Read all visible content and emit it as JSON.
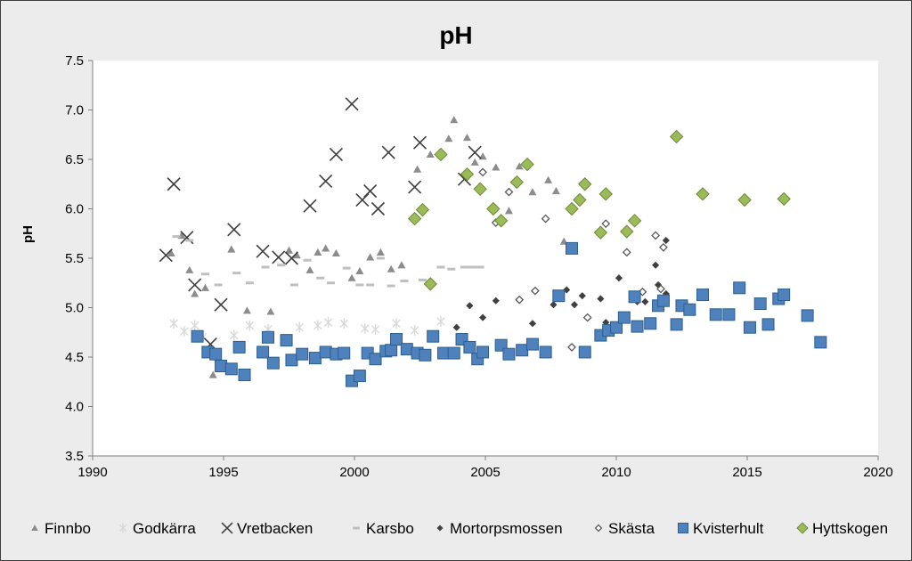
{
  "chart_data": {
    "type": "scatter",
    "title": "pH",
    "xlabel": "",
    "ylabel": "pH",
    "xlim": [
      1990,
      2020
    ],
    "ylim": [
      3.5,
      7.5
    ],
    "xticks": [
      "1990",
      "1995",
      "2000",
      "2005",
      "2010",
      "2015",
      "2020"
    ],
    "yticks": [
      "3.5",
      "4.0",
      "4.5",
      "5.0",
      "5.5",
      "6.0",
      "6.5",
      "7.0",
      "7.5"
    ],
    "grid": false,
    "legend": "bottom",
    "series": [
      {
        "name": "Finnbo",
        "marker": "triangle",
        "color": "#8c8c8c",
        "x": [
          1993.0,
          1993.4,
          1993.7,
          1993.9,
          1994.3,
          1994.6,
          1995.3,
          1995.9,
          1996.8,
          1997.5,
          1997.8,
          1998.3,
          1998.6,
          1998.9,
          1999.3,
          1999.9,
          2000.2,
          2000.6,
          2001.0,
          2001.4,
          2001.8,
          2002.4,
          2002.9,
          2003.6,
          2003.8,
          2004.3,
          2004.6,
          2004.9,
          2005.4,
          2005.9,
          2006.3,
          2006.8,
          2007.4,
          2007.7,
          2008.0
        ],
        "y": [
          5.55,
          5.73,
          5.38,
          5.14,
          5.2,
          4.32,
          5.59,
          4.97,
          4.96,
          5.58,
          5.53,
          5.38,
          5.56,
          5.6,
          5.55,
          5.3,
          5.37,
          5.51,
          5.56,
          5.39,
          5.43,
          6.4,
          6.55,
          6.71,
          6.9,
          6.72,
          6.47,
          6.53,
          6.42,
          5.98,
          6.43,
          6.17,
          6.29,
          6.18,
          5.67
        ]
      },
      {
        "name": "Godkärra",
        "marker": "star",
        "color": "#d9d9d9",
        "x": [
          1993.1,
          1993.5,
          1993.9,
          1994.2,
          1995.4,
          1996.0,
          1996.7,
          1997.3,
          1997.9,
          1998.6,
          1999.0,
          1999.6,
          2000.4,
          2000.8,
          2001.6,
          2002.3,
          2003.3
        ],
        "y": [
          4.84,
          4.76,
          4.82,
          4.7,
          4.72,
          4.82,
          4.78,
          4.68,
          4.8,
          4.82,
          4.85,
          4.84,
          4.79,
          4.78,
          4.84,
          4.77,
          4.86
        ]
      },
      {
        "name": "Vretbacken",
        "marker": "x",
        "color": "#3f3f3f",
        "x": [
          1992.8,
          1993.1,
          1993.6,
          1993.9,
          1994.5,
          1994.9,
          1995.4,
          1996.5,
          1997.1,
          1997.6,
          1998.3,
          1998.9,
          1999.3,
          1999.9,
          2000.3,
          2000.6,
          2000.9,
          2001.3,
          2002.3,
          2002.5,
          2004.2,
          2004.6
        ],
        "y": [
          5.53,
          6.25,
          5.71,
          5.23,
          4.63,
          5.03,
          5.79,
          5.57,
          5.51,
          5.5,
          6.03,
          6.28,
          6.55,
          7.06,
          6.09,
          6.18,
          6.0,
          6.57,
          6.22,
          6.67,
          6.3,
          6.57
        ]
      },
      {
        "name": "Karsbo",
        "marker": "dash",
        "color": "#bfbfbf",
        "x": [
          1993.2,
          1993.7,
          1994.3,
          1994.8,
          1995.5,
          1996.0,
          1996.6,
          1997.2,
          1997.7,
          1998.2,
          1998.7,
          1999.1,
          1999.7,
          2000.2,
          2000.6,
          2001.0,
          2001.4,
          2001.9,
          2002.6,
          2003.3,
          2003.7,
          2004.2,
          2004.5,
          2004.8
        ],
        "y": [
          5.72,
          5.68,
          5.34,
          5.23,
          5.35,
          5.25,
          5.41,
          5.43,
          5.23,
          5.48,
          5.3,
          5.25,
          5.4,
          5.23,
          5.23,
          5.5,
          5.22,
          5.27,
          5.28,
          5.41,
          5.39,
          5.41,
          5.41,
          5.41
        ]
      },
      {
        "name": "Mortorpsmossen",
        "marker": "diamond",
        "color": "#404040",
        "x": [
          2003.9,
          2004.4,
          2004.9,
          2005.4,
          2006.8,
          2007.6,
          2008.1,
          2008.4,
          2008.7,
          2009.4,
          2009.6,
          2010.1,
          2010.8,
          2011.1,
          2011.5,
          2011.9,
          2011.6,
          2011.9
        ],
        "y": [
          4.8,
          5.02,
          4.9,
          5.07,
          4.84,
          5.03,
          5.18,
          5.03,
          5.12,
          5.09,
          4.85,
          5.3,
          5.06,
          5.06,
          5.43,
          5.14,
          5.23,
          5.68
        ]
      },
      {
        "name": "Skästa",
        "marker": "diamond-open",
        "color": "#595959",
        "x": [
          2004.9,
          2005.4,
          2005.9,
          2006.3,
          2006.9,
          2007.3,
          2008.3,
          2008.9,
          2009.6,
          2010.4,
          2011.0,
          2011.5,
          2011.8,
          2011.7
        ],
        "y": [
          6.37,
          5.86,
          6.17,
          5.08,
          5.17,
          5.9,
          4.6,
          4.9,
          5.85,
          5.56,
          5.16,
          5.73,
          5.61,
          5.19
        ]
      },
      {
        "name": "Kvisterhult",
        "marker": "square",
        "color": "#4f81bd",
        "x": [
          1994.0,
          1994.4,
          1994.7,
          1994.9,
          1995.3,
          1995.6,
          1995.8,
          1996.5,
          1996.7,
          1996.9,
          1997.4,
          1997.6,
          1998.0,
          1998.5,
          1998.9,
          1999.3,
          1999.6,
          1999.9,
          2000.2,
          2000.5,
          2000.8,
          2001.2,
          2001.4,
          2001.6,
          2002.0,
          2002.4,
          2002.7,
          2003.0,
          2003.4,
          2003.8,
          2004.1,
          2004.4,
          2004.7,
          2004.9,
          2005.6,
          2005.9,
          2006.4,
          2006.8,
          2007.3,
          2007.8,
          2008.3,
          2008.8,
          2009.4,
          2009.7,
          2010.0,
          2010.3,
          2010.7,
          2010.8,
          2011.3,
          2011.6,
          2011.8,
          2012.3,
          2012.5,
          2012.8,
          2013.3,
          2013.8,
          2014.3,
          2014.7,
          2015.1,
          2015.5,
          2015.8,
          2016.2,
          2016.4,
          2017.3,
          2017.8
        ],
        "y": [
          4.71,
          4.55,
          4.53,
          4.41,
          4.38,
          4.6,
          4.32,
          4.55,
          4.7,
          4.44,
          4.67,
          4.47,
          4.53,
          4.49,
          4.55,
          4.53,
          4.54,
          4.26,
          4.31,
          4.54,
          4.48,
          4.56,
          4.57,
          4.68,
          4.58,
          4.54,
          4.52,
          4.71,
          4.54,
          4.54,
          4.68,
          4.6,
          4.48,
          4.55,
          4.62,
          4.53,
          4.57,
          4.63,
          4.55,
          5.12,
          5.6,
          4.55,
          4.72,
          4.77,
          4.8,
          4.9,
          5.11,
          4.81,
          4.84,
          5.02,
          5.07,
          4.83,
          5.02,
          4.98,
          5.13,
          4.93,
          4.93,
          5.2,
          4.8,
          5.04,
          4.83,
          5.09,
          5.13,
          4.92,
          4.65
        ]
      },
      {
        "name": "Hyttskogen",
        "marker": "diamond",
        "color": "#9bbb59",
        "x": [
          2002.3,
          2002.6,
          2002.9,
          2003.3,
          2004.3,
          2004.8,
          2005.3,
          2005.6,
          2006.2,
          2006.6,
          2008.3,
          2008.6,
          2008.8,
          2009.4,
          2009.6,
          2010.4,
          2010.7,
          2012.3,
          2013.3,
          2014.9,
          2016.4
        ],
        "y": [
          5.9,
          5.99,
          5.24,
          6.55,
          6.35,
          6.2,
          6.0,
          5.88,
          6.27,
          6.45,
          6.0,
          6.09,
          6.25,
          5.76,
          6.15,
          5.77,
          5.88,
          6.73,
          6.15,
          6.09,
          6.1
        ]
      }
    ]
  }
}
